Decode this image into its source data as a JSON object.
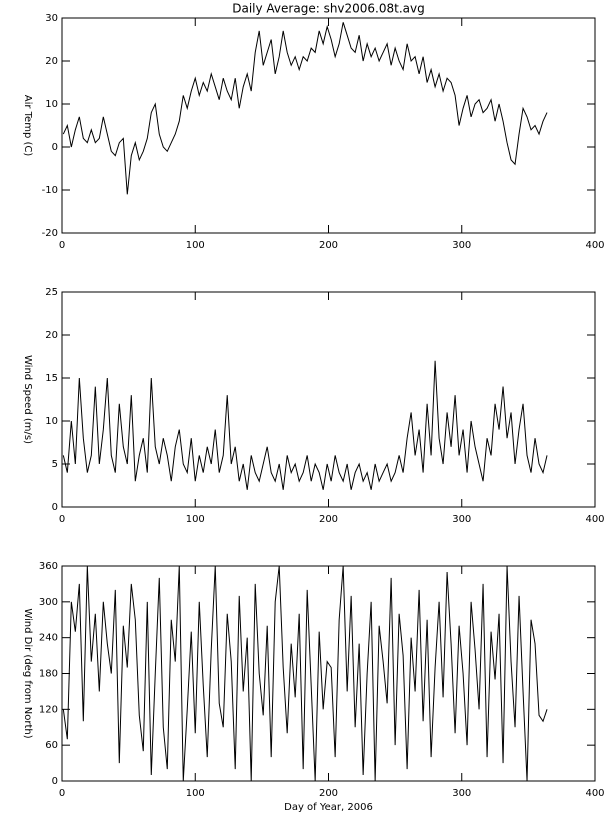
{
  "chart_data": [
    {
      "type": "line",
      "title": "Daily Average: shv2006.08t.avg",
      "ylabel": "Air Temp (C)",
      "xlim": [
        0,
        400
      ],
      "xticks": [
        0,
        100,
        200,
        300,
        400
      ],
      "ylim": [
        -20,
        30
      ],
      "yticks": [
        -20,
        -10,
        0,
        10,
        20,
        30
      ],
      "color": "#000000",
      "x": [
        1,
        4,
        7,
        10,
        13,
        16,
        19,
        22,
        25,
        28,
        31,
        34,
        37,
        40,
        43,
        46,
        49,
        52,
        55,
        58,
        61,
        64,
        67,
        70,
        73,
        76,
        79,
        82,
        85,
        88,
        91,
        94,
        97,
        100,
        103,
        106,
        109,
        112,
        115,
        118,
        121,
        124,
        127,
        130,
        133,
        136,
        139,
        142,
        145,
        148,
        151,
        154,
        157,
        160,
        163,
        166,
        169,
        172,
        175,
        178,
        181,
        184,
        187,
        190,
        193,
        196,
        199,
        202,
        205,
        208,
        211,
        214,
        217,
        220,
        223,
        226,
        229,
        232,
        235,
        238,
        241,
        244,
        247,
        250,
        253,
        256,
        259,
        262,
        265,
        268,
        271,
        274,
        277,
        280,
        283,
        286,
        289,
        292,
        295,
        298,
        301,
        304,
        307,
        310,
        313,
        316,
        319,
        322,
        325,
        328,
        331,
        334,
        337,
        340,
        343,
        346,
        349,
        352,
        355,
        358,
        361,
        364
      ],
      "values": [
        3,
        5,
        0,
        4,
        7,
        2,
        1,
        4,
        1,
        2,
        7,
        3,
        -1,
        -2,
        1,
        2,
        -11,
        -2,
        1,
        -3,
        -1,
        2,
        8,
        10,
        3,
        0,
        -1,
        1,
        3,
        6,
        12,
        9,
        13,
        16,
        12,
        15,
        13,
        17,
        14,
        11,
        16,
        13,
        11,
        16,
        9,
        14,
        17,
        13,
        22,
        27,
        19,
        22,
        25,
        17,
        21,
        27,
        22,
        19,
        21,
        18,
        21,
        20,
        23,
        22,
        27,
        24,
        28,
        25,
        21,
        24,
        29,
        26,
        23,
        22,
        26,
        20,
        24,
        21,
        23,
        20,
        22,
        24,
        19,
        23,
        20,
        18,
        24,
        20,
        21,
        17,
        21,
        15,
        18,
        14,
        17,
        13,
        16,
        15,
        12,
        5,
        9,
        12,
        7,
        10,
        11,
        8,
        9,
        11,
        6,
        10,
        6,
        1,
        -3,
        -4,
        3,
        9,
        7,
        4,
        5,
        3,
        6,
        8
      ]
    },
    {
      "type": "line",
      "ylabel": "Wind Speed (m/s)",
      "xlim": [
        0,
        400
      ],
      "xticks": [
        0,
        100,
        200,
        300,
        400
      ],
      "ylim": [
        0,
        25
      ],
      "yticks": [
        0,
        5,
        10,
        15,
        20,
        25
      ],
      "color": "#000000",
      "x": [
        1,
        4,
        7,
        10,
        13,
        16,
        19,
        22,
        25,
        28,
        31,
        34,
        37,
        40,
        43,
        46,
        49,
        52,
        55,
        58,
        61,
        64,
        67,
        70,
        73,
        76,
        79,
        82,
        85,
        88,
        91,
        94,
        97,
        100,
        103,
        106,
        109,
        112,
        115,
        118,
        121,
        124,
        127,
        130,
        133,
        136,
        139,
        142,
        145,
        148,
        151,
        154,
        157,
        160,
        163,
        166,
        169,
        172,
        175,
        178,
        181,
        184,
        187,
        190,
        193,
        196,
        199,
        202,
        205,
        208,
        211,
        214,
        217,
        220,
        223,
        226,
        229,
        232,
        235,
        238,
        241,
        244,
        247,
        250,
        253,
        256,
        259,
        262,
        265,
        268,
        271,
        274,
        277,
        280,
        283,
        286,
        289,
        292,
        295,
        298,
        301,
        304,
        307,
        310,
        313,
        316,
        319,
        322,
        325,
        328,
        331,
        334,
        337,
        340,
        343,
        346,
        349,
        352,
        355,
        358,
        361,
        364
      ],
      "values": [
        6,
        4,
        10,
        5,
        15,
        8,
        4,
        6,
        14,
        5,
        9,
        15,
        6,
        4,
        12,
        7,
        5,
        13,
        3,
        6,
        8,
        4,
        15,
        7,
        5,
        8,
        6,
        3,
        7,
        9,
        5,
        4,
        8,
        3,
        6,
        4,
        7,
        5,
        9,
        4,
        6,
        13,
        5,
        7,
        3,
        5,
        2,
        6,
        4,
        3,
        5,
        7,
        4,
        3,
        5,
        2,
        6,
        4,
        5,
        3,
        4,
        6,
        3,
        5,
        4,
        2,
        5,
        3,
        6,
        4,
        3,
        5,
        2,
        4,
        5,
        3,
        4,
        2,
        5,
        3,
        4,
        5,
        3,
        4,
        6,
        4,
        8,
        11,
        6,
        9,
        4,
        12,
        6,
        17,
        8,
        5,
        11,
        7,
        13,
        6,
        9,
        4,
        10,
        7,
        5,
        3,
        8,
        6,
        12,
        9,
        14,
        8,
        11,
        5,
        9,
        12,
        6,
        4,
        8,
        5,
        4,
        6
      ]
    },
    {
      "type": "line",
      "ylabel": "Wind Dir (deg from North)",
      "xlabel": "Day of Year, 2006",
      "xlim": [
        0,
        400
      ],
      "xticks": [
        0,
        100,
        200,
        300,
        400
      ],
      "ylim": [
        0,
        360
      ],
      "yticks": [
        0,
        60,
        120,
        180,
        240,
        300,
        360
      ],
      "color": "#000000",
      "x": [
        1,
        4,
        7,
        10,
        13,
        16,
        19,
        22,
        25,
        28,
        31,
        34,
        37,
        40,
        43,
        46,
        49,
        52,
        55,
        58,
        61,
        64,
        67,
        70,
        73,
        76,
        79,
        82,
        85,
        88,
        91,
        94,
        97,
        100,
        103,
        106,
        109,
        112,
        115,
        118,
        121,
        124,
        127,
        130,
        133,
        136,
        139,
        142,
        145,
        148,
        151,
        154,
        157,
        160,
        163,
        166,
        169,
        172,
        175,
        178,
        181,
        184,
        187,
        190,
        193,
        196,
        199,
        202,
        205,
        208,
        211,
        214,
        217,
        220,
        223,
        226,
        229,
        232,
        235,
        238,
        241,
        244,
        247,
        250,
        253,
        256,
        259,
        262,
        265,
        268,
        271,
        274,
        277,
        280,
        283,
        286,
        289,
        292,
        295,
        298,
        301,
        304,
        307,
        310,
        313,
        316,
        319,
        322,
        325,
        328,
        331,
        334,
        337,
        340,
        343,
        346,
        349,
        352,
        355,
        358,
        361,
        364
      ],
      "values": [
        120,
        70,
        300,
        250,
        330,
        100,
        360,
        200,
        280,
        150,
        300,
        230,
        180,
        320,
        30,
        260,
        190,
        330,
        270,
        110,
        50,
        300,
        10,
        180,
        340,
        90,
        20,
        270,
        200,
        360,
        0,
        120,
        250,
        80,
        300,
        160,
        40,
        220,
        360,
        130,
        90,
        280,
        200,
        20,
        310,
        150,
        240,
        0,
        330,
        180,
        110,
        260,
        40,
        300,
        360,
        190,
        80,
        230,
        140,
        280,
        20,
        320,
        160,
        0,
        250,
        120,
        200,
        190,
        40,
        270,
        360,
        150,
        310,
        90,
        230,
        10,
        180,
        300,
        0,
        260,
        200,
        130,
        340,
        60,
        280,
        210,
        20,
        240,
        150,
        320,
        100,
        270,
        40,
        190,
        300,
        140,
        350,
        230,
        80,
        260,
        180,
        60,
        300,
        220,
        120,
        330,
        40,
        250,
        170,
        280,
        30,
        360,
        200,
        90,
        310,
        150,
        0,
        270,
        230,
        110,
        100,
        120
      ]
    }
  ]
}
